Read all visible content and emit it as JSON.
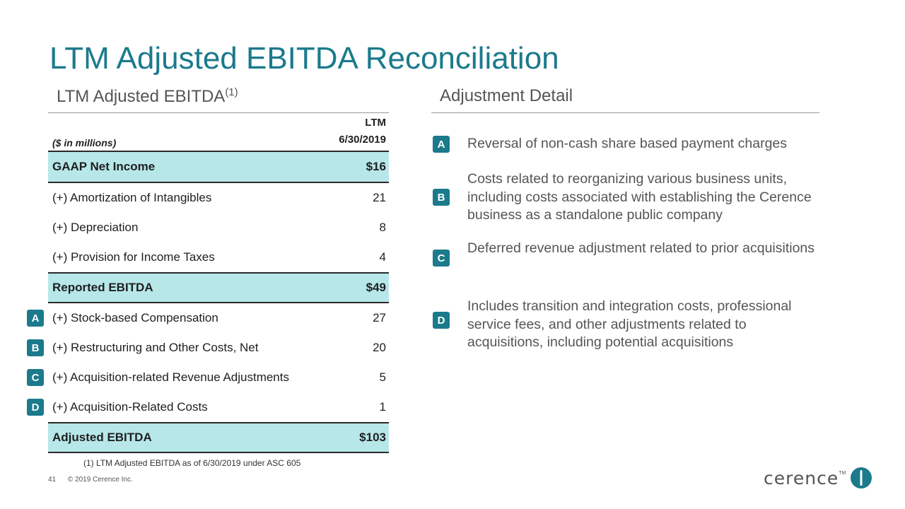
{
  "title": "LTM Adjusted EBITDA Reconciliation",
  "left_section": {
    "title": "LTM Adjusted EBITDA",
    "footnote_ref": "(1)"
  },
  "right_section": {
    "title": "Adjustment Detail"
  },
  "table": {
    "units_label": "($ in millions)",
    "col_header_line1": "LTM",
    "col_header_line2": "6/30/2019",
    "rows": [
      {
        "label": "GAAP Net Income",
        "value": "$16"
      },
      {
        "label": "(+) Amortization of Intangibles",
        "value": "21"
      },
      {
        "label": "(+) Depreciation",
        "value": "8"
      },
      {
        "label": "(+) Provision for Income Taxes",
        "value": "4"
      },
      {
        "label": "Reported EBITDA",
        "value": "$49"
      },
      {
        "label": "(+) Stock-based Compensation",
        "value": "27",
        "badge": "A"
      },
      {
        "label": "(+) Restructuring and Other Costs, Net",
        "value": "20",
        "badge": "B"
      },
      {
        "label": "(+) Acquisition-related Revenue Adjustments",
        "value": "5",
        "badge": "C"
      },
      {
        "label": "(+) Acquisition-Related Costs",
        "value": "1",
        "badge": "D"
      },
      {
        "label": "Adjusted EBITDA",
        "value": "$103"
      }
    ]
  },
  "details": [
    {
      "badge": "A",
      "text": "Reversal of non-cash share based payment charges"
    },
    {
      "badge": "B",
      "text": "Costs related to reorganizing various business units, including costs associated with establishing the Cerence business as a standalone public company"
    },
    {
      "badge": "C",
      "text": "Deferred revenue adjustment related to prior acquisitions"
    },
    {
      "badge": "D",
      "text": "Includes transition and integration costs, professional service fees, and other adjustments related to acquisitions, including potential acquisitions"
    }
  ],
  "footnote": "(1)   LTM Adjusted EBITDA as of 6/30/2019 under ASC 605",
  "footer": {
    "page_number": "41",
    "copyright": "© 2019 Cerence Inc."
  },
  "logo": {
    "text": "cerence",
    "tm": "TM"
  },
  "colors": {
    "accent": "#1b7a8c",
    "highlight": "#b7e7e9",
    "text_gray": "#555555"
  }
}
